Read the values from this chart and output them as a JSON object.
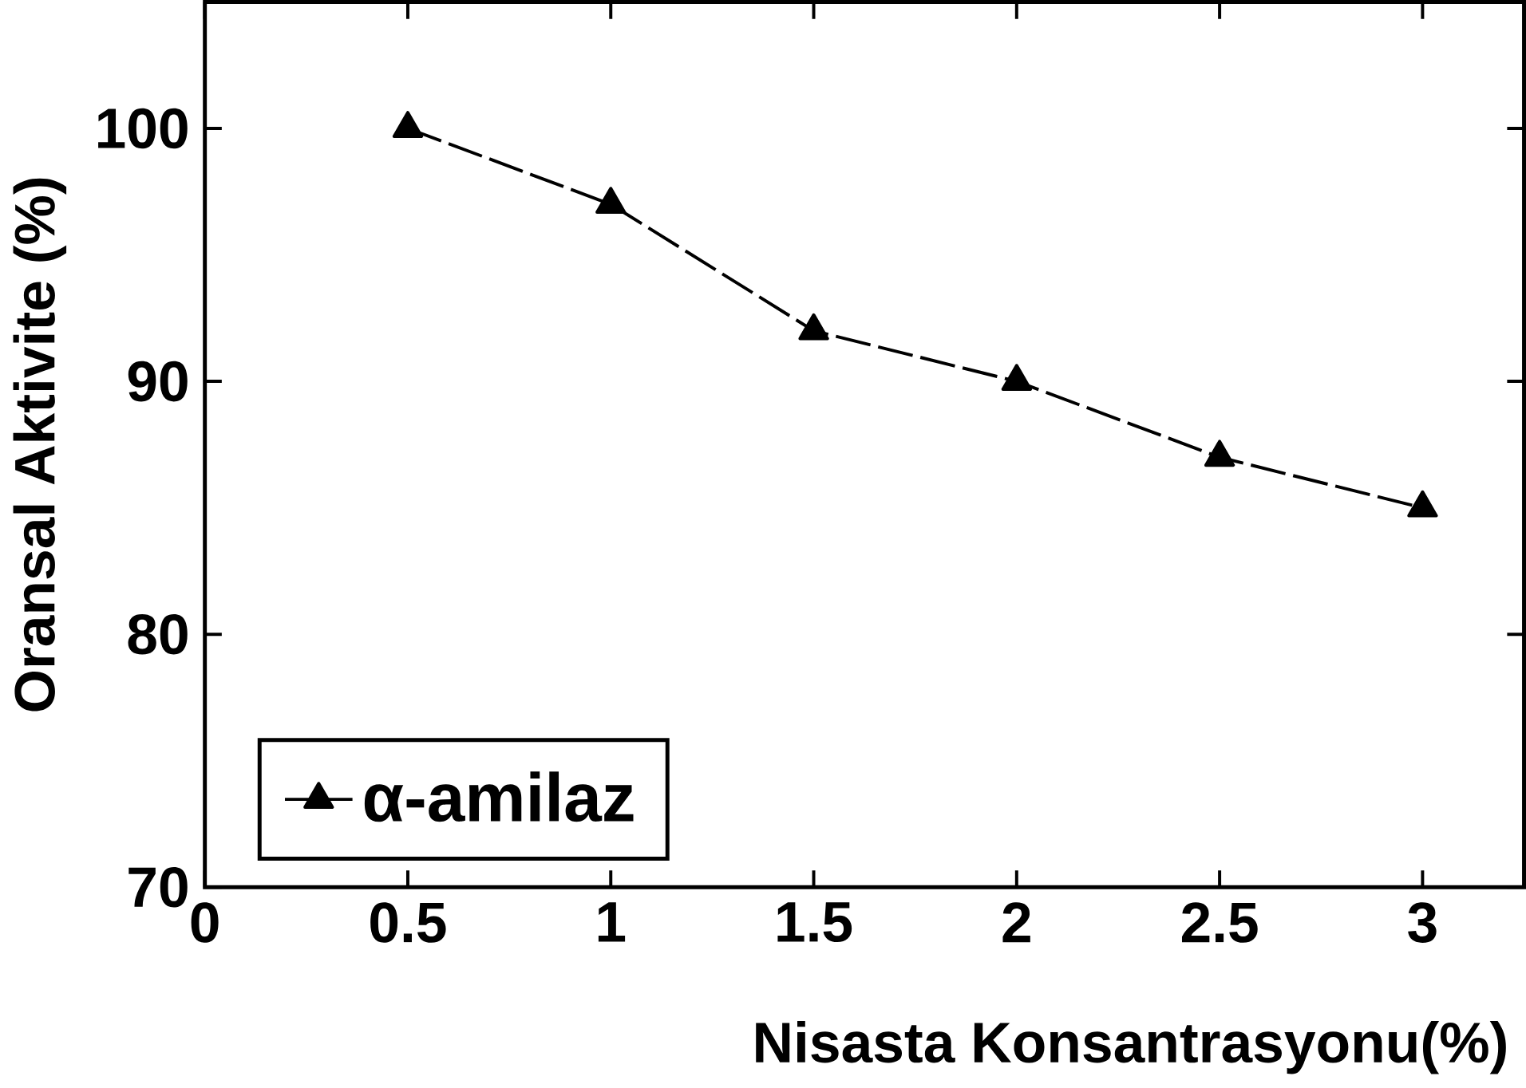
{
  "chart_data": {
    "type": "line",
    "xlabel": "Nisasta Konsantrasyonu(%)",
    "ylabel": "Oransal Aktivite (%)",
    "x": [
      0.5,
      1,
      1.5,
      2,
      2.5,
      3
    ],
    "series": [
      {
        "name": "α-amilaz",
        "color": "#000000",
        "values": [
          100,
          97,
          92,
          90,
          87,
          85
        ]
      }
    ],
    "xlim": [
      0,
      3.25
    ],
    "ylim": [
      70,
      105
    ],
    "xticks": [
      0,
      0.5,
      1,
      1.5,
      2,
      2.5,
      3
    ],
    "yticks": [
      70,
      80,
      90,
      100
    ],
    "marker": "triangle",
    "line_style": "dashed",
    "legend": "bottom left",
    "grid": false
  }
}
